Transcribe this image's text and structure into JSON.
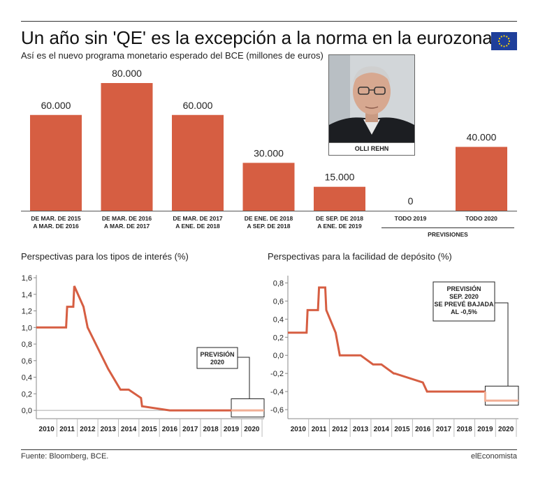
{
  "title": "Un año sin 'QE' es la excepción a la norma en la eurozona",
  "subtitle": "Así es el nuevo programa monetario esperado del BCE (millones de euros)",
  "photo_caption": "OLLI REHN",
  "footer": {
    "source": "Fuente: Bloomberg, BCE.",
    "brand": "elEconomista"
  },
  "colors": {
    "bar": "#d65e42",
    "line": "#d65e42",
    "forecast": "#f1ae95",
    "axis": "#888888"
  },
  "icons": {
    "flag": "eu-flag-icon"
  },
  "chart_data": [
    {
      "type": "bar",
      "title": "",
      "categories": [
        [
          "DE MAR. DE 2015",
          "A MAR. DE 2016"
        ],
        [
          "DE MAR. DE 2016",
          "A MAR. DE 2017"
        ],
        [
          "DE MAR. DE 2017",
          "A ENE. DE 2018"
        ],
        [
          "DE ENE. DE 2018",
          "A SEP. DE 2018"
        ],
        [
          "DE SEP. DE 2018",
          "A ENE. DE 2019"
        ],
        [
          "TODO 2019"
        ],
        [
          "TODO 2020"
        ]
      ],
      "values": [
        60000,
        80000,
        60000,
        30000,
        15000,
        0,
        40000
      ],
      "value_labels": [
        "60.000",
        "80.000",
        "60.000",
        "30.000",
        "15.000",
        "0",
        "40.000"
      ],
      "group_label": "PREVISIONES",
      "ylim": [
        0,
        80000
      ]
    },
    {
      "type": "line",
      "title": "Perspectivas para los tipos de interés (%)",
      "xlim": [
        2009.5,
        2020.6
      ],
      "ylim": [
        -0.1,
        1.6
      ],
      "yticks": [
        1.6,
        1.4,
        1.2,
        1.0,
        0.8,
        0.6,
        0.4,
        0.2,
        0.0
      ],
      "ytick_labels": [
        "1,6",
        "1,4",
        "1,2",
        "1,0",
        "0,8",
        "0,6",
        "0,4",
        "0,2",
        "0,0"
      ],
      "xticks": [
        2010,
        2011,
        2012,
        2013,
        2014,
        2015,
        2016,
        2017,
        2018,
        2019,
        2020
      ],
      "xtick_labels": [
        "2010",
        "2011",
        "2012",
        "2013",
        "2014",
        "2015",
        "2016",
        "2017",
        "2018",
        "2019",
        "2020"
      ],
      "series": [
        {
          "x": [
            2009.5,
            2010.95,
            2011.0,
            2011.3,
            2011.35,
            2011.8,
            2012.0,
            2012.5,
            2013.0,
            2013.6,
            2014.0,
            2014.6,
            2014.65,
            2016.0,
            2019.0
          ],
          "y": [
            1.0,
            1.0,
            1.25,
            1.25,
            1.5,
            1.25,
            1.0,
            0.75,
            0.5,
            0.25,
            0.25,
            0.15,
            0.05,
            0.0,
            0.0
          ],
          "forecast": false
        },
        {
          "x": [
            2019.0,
            2020.6
          ],
          "y": [
            0.0,
            0.0
          ],
          "forecast": true
        }
      ],
      "annotation": [
        "PREVISIÓN",
        "2020"
      ],
      "highlight_box": {
        "x": [
          2019.0,
          2020.6
        ],
        "y": [
          -0.08,
          0.14
        ]
      }
    },
    {
      "type": "line",
      "title": "Perspectivas para la facilidad de depósito (%)",
      "xlim": [
        2009.5,
        2020.6
      ],
      "ylim": [
        -0.7,
        0.85
      ],
      "yticks": [
        0.8,
        0.6,
        0.4,
        0.2,
        0.0,
        -0.2,
        -0.4,
        -0.6
      ],
      "ytick_labels": [
        "0,8",
        "0,6",
        "0,4",
        "0,2",
        "0,0",
        "-0,2",
        "-0,4",
        "-0,6"
      ],
      "xticks": [
        2010,
        2011,
        2012,
        2013,
        2014,
        2015,
        2016,
        2017,
        2018,
        2019,
        2020
      ],
      "xtick_labels": [
        "2010",
        "2011",
        "2012",
        "2013",
        "2014",
        "2015",
        "2016",
        "2017",
        "2018",
        "2019",
        "2020"
      ],
      "series": [
        {
          "x": [
            2009.5,
            2010.4,
            2010.45,
            2010.95,
            2011.0,
            2011.3,
            2011.35,
            2011.8,
            2012.0,
            2012.5,
            2013.0,
            2013.6,
            2014.0,
            2014.6,
            2014.65,
            2016.0,
            2016.2,
            2019.0
          ],
          "y": [
            0.25,
            0.25,
            0.5,
            0.5,
            0.75,
            0.75,
            0.5,
            0.25,
            0.0,
            0.0,
            0.0,
            -0.1,
            -0.1,
            -0.2,
            -0.2,
            -0.3,
            -0.4,
            -0.4
          ],
          "forecast": false
        },
        {
          "x": [
            2019.0,
            2019.0,
            2020.6
          ],
          "y": [
            -0.4,
            -0.5,
            -0.5
          ],
          "forecast": true
        }
      ],
      "annotation": [
        "PREVISIÓN",
        "SEP. 2020",
        "SE PREVÉ BAJADA",
        "AL  -0,5%"
      ],
      "highlight_box": {
        "x": [
          2019.0,
          2020.6
        ],
        "y": [
          -0.55,
          -0.34
        ]
      }
    }
  ]
}
